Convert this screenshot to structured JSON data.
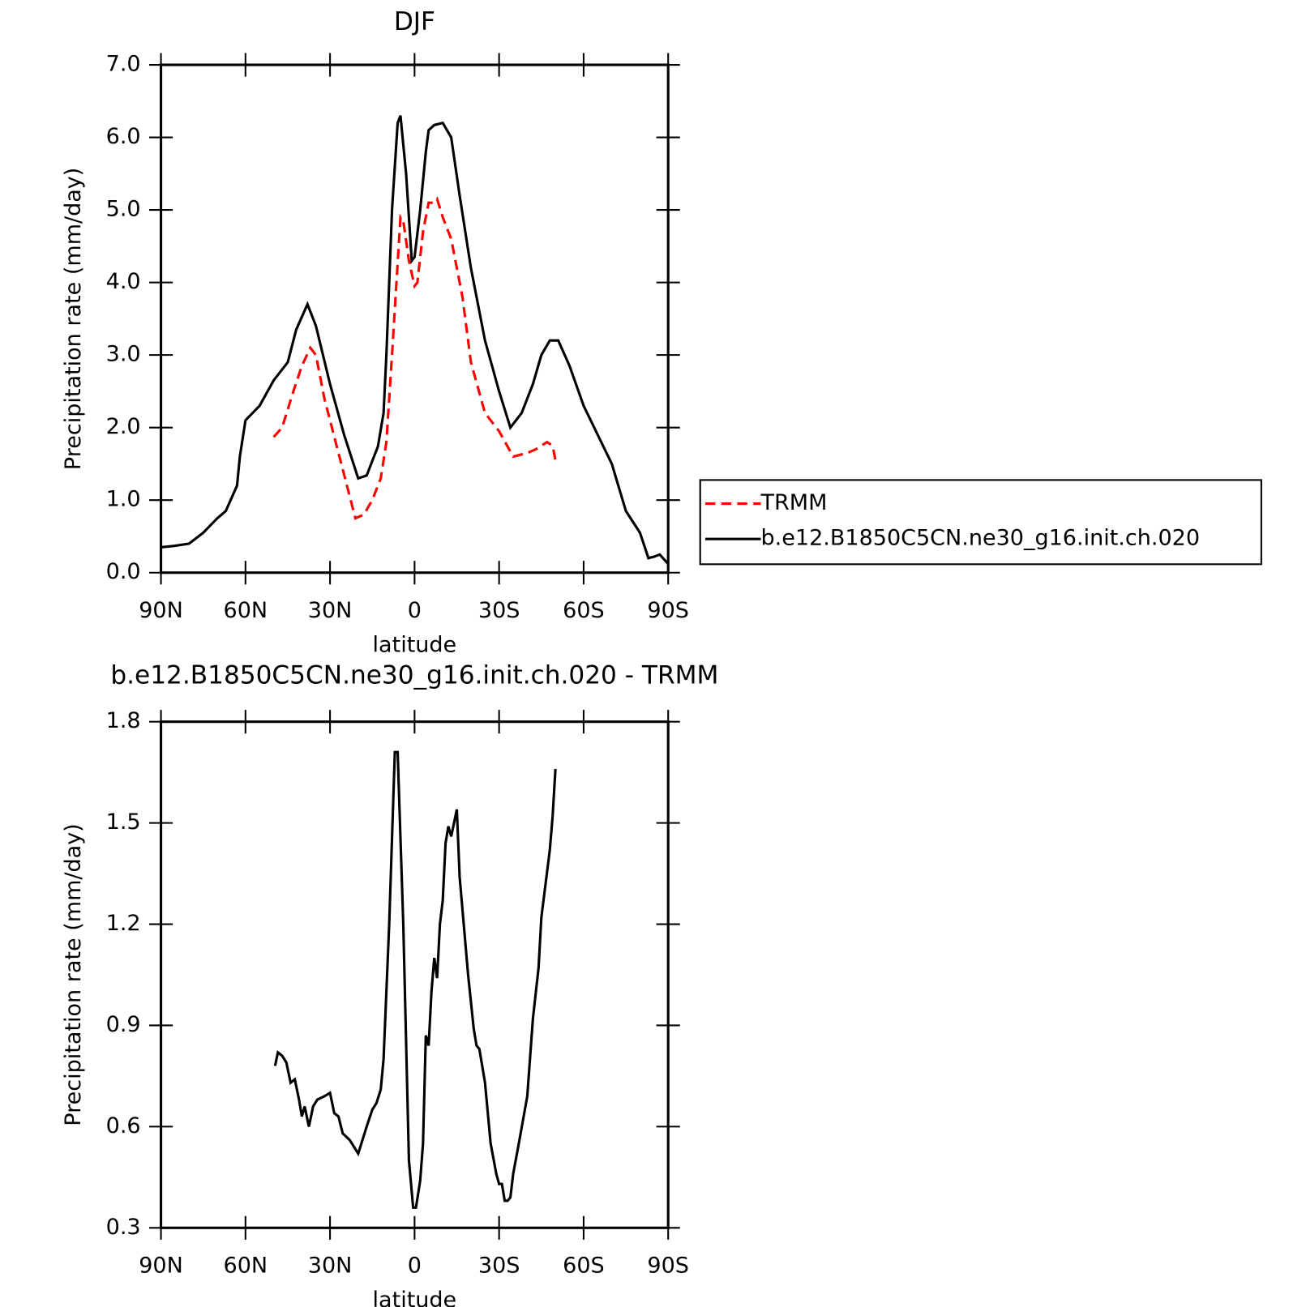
{
  "chart_data": [
    {
      "type": "line",
      "title": "DJF",
      "x_label": "latitude",
      "y_label": "Precipitation rate (mm/day)",
      "xlim": [
        90,
        -90
      ],
      "xticks": [
        {
          "value": 90,
          "label": "90N"
        },
        {
          "value": 60,
          "label": "60N"
        },
        {
          "value": 30,
          "label": "30N"
        },
        0,
        {
          "value": -30,
          "label": "30S"
        },
        {
          "value": -60,
          "label": "60S"
        },
        {
          "value": -90,
          "label": "90S"
        }
      ],
      "ylim": [
        0,
        7
      ],
      "yticks": [
        {
          "value": 0,
          "label": "0.0"
        },
        {
          "value": 1,
          "label": "1.0"
        },
        {
          "value": 2,
          "label": "2.0"
        },
        {
          "value": 3,
          "label": "3.0"
        },
        {
          "value": 4,
          "label": "4.0"
        },
        {
          "value": 5,
          "label": "5.0"
        },
        {
          "value": 6,
          "label": "6.0"
        },
        {
          "value": 7,
          "label": "7.0"
        }
      ],
      "legend": "right",
      "series": [
        {
          "name": "TRMM",
          "color": "#ff0000",
          "dash": true,
          "x": [
            50,
            47,
            43,
            40,
            37,
            35,
            32,
            28,
            24,
            21,
            18,
            15,
            12,
            10,
            8,
            5,
            4,
            2,
            0,
            -1,
            -3,
            -5,
            -7,
            -8,
            -10,
            -13,
            -17,
            -20,
            -25,
            -30,
            -35,
            -40,
            -43,
            -47,
            -49,
            -50
          ],
          "values": [
            1.87,
            2.0,
            2.5,
            2.85,
            3.1,
            3.0,
            2.4,
            1.8,
            1.2,
            0.75,
            0.8,
            1.0,
            1.3,
            1.8,
            3.0,
            4.9,
            4.85,
            4.3,
            3.95,
            4.0,
            4.7,
            5.1,
            5.1,
            5.15,
            4.9,
            4.6,
            3.8,
            2.9,
            2.2,
            1.95,
            1.6,
            1.65,
            1.7,
            1.8,
            1.75,
            1.55
          ]
        },
        {
          "name": "b.e12.B1850C5CN.ne30_g16.init.ch.020",
          "color": "#000000",
          "dash": false,
          "x": [
            90,
            85,
            80,
            75,
            70,
            67,
            63,
            62,
            60,
            55,
            50,
            45,
            42,
            38,
            35,
            30,
            25,
            20,
            17,
            13,
            11,
            10,
            8,
            6,
            5,
            3,
            1,
            0,
            -2,
            -4,
            -5,
            -7,
            -10,
            -13,
            -16,
            -20,
            -25,
            -30,
            -34,
            -38,
            -42,
            -45,
            -48,
            -51,
            -55,
            -60,
            -65,
            -70,
            -75,
            -80,
            -83,
            -85,
            -87,
            -90
          ],
          "values": [
            0.35,
            0.37,
            0.4,
            0.55,
            0.75,
            0.85,
            1.2,
            1.6,
            2.1,
            2.3,
            2.65,
            2.9,
            3.35,
            3.7,
            3.4,
            2.6,
            1.9,
            1.3,
            1.34,
            1.74,
            2.2,
            3.0,
            5.0,
            6.2,
            6.3,
            5.5,
            4.3,
            4.35,
            5.0,
            5.8,
            6.1,
            6.17,
            6.2,
            6.0,
            5.2,
            4.2,
            3.2,
            2.5,
            2.0,
            2.2,
            2.6,
            3.0,
            3.2,
            3.2,
            2.85,
            2.3,
            1.9,
            1.5,
            0.85,
            0.55,
            0.2,
            0.22,
            0.25,
            0.12
          ]
        }
      ]
    },
    {
      "type": "line",
      "title": "b.e12.B1850C5CN.ne30_g16.init.ch.020 - TRMM",
      "x_label": "latitude",
      "y_label": "Precipitation rate (mm/day)",
      "xlim": [
        90,
        -90
      ],
      "xticks": [
        {
          "value": 90,
          "label": "90N"
        },
        {
          "value": 60,
          "label": "60N"
        },
        {
          "value": 30,
          "label": "30N"
        },
        0,
        {
          "value": -30,
          "label": "30S"
        },
        {
          "value": -60,
          "label": "60S"
        },
        {
          "value": -90,
          "label": "90S"
        }
      ],
      "ylim": [
        0.3,
        1.8
      ],
      "yticks": [
        0.3,
        0.6,
        0.9,
        1.2,
        1.5,
        1.8
      ],
      "color": "#000000",
      "x": [
        49.5,
        48.5,
        47,
        45.5,
        44,
        42.5,
        41,
        40,
        39,
        37.5,
        36,
        34.5,
        32,
        30,
        28.5,
        27,
        25.5,
        23,
        20,
        17,
        15,
        13.5,
        12,
        11,
        9,
        7,
        6,
        4,
        2,
        0.5,
        -0.5,
        -2,
        -3,
        -4,
        -5,
        -6,
        -7,
        -8,
        -9,
        -10,
        -11,
        -12,
        -13,
        -15,
        -16,
        -19,
        -21,
        -22,
        -23,
        -25,
        -27,
        -29,
        -30,
        -31,
        -32,
        -33,
        -34,
        -35,
        -37,
        -40,
        -42,
        -44,
        -45,
        -48,
        -49,
        -50
      ],
      "values": [
        0.78,
        0.82,
        0.81,
        0.79,
        0.73,
        0.74,
        0.68,
        0.63,
        0.66,
        0.6,
        0.66,
        0.68,
        0.69,
        0.7,
        0.64,
        0.63,
        0.58,
        0.56,
        0.52,
        0.6,
        0.65,
        0.67,
        0.71,
        0.8,
        1.2,
        1.71,
        1.71,
        1.2,
        0.5,
        0.36,
        0.36,
        0.44,
        0.55,
        0.87,
        0.84,
        1.0,
        1.1,
        1.04,
        1.2,
        1.27,
        1.44,
        1.49,
        1.46,
        1.54,
        1.34,
        1.05,
        0.89,
        0.84,
        0.83,
        0.73,
        0.55,
        0.46,
        0.43,
        0.43,
        0.38,
        0.38,
        0.39,
        0.46,
        0.55,
        0.69,
        0.92,
        1.07,
        1.22,
        1.42,
        1.52,
        1.66
      ]
    }
  ]
}
